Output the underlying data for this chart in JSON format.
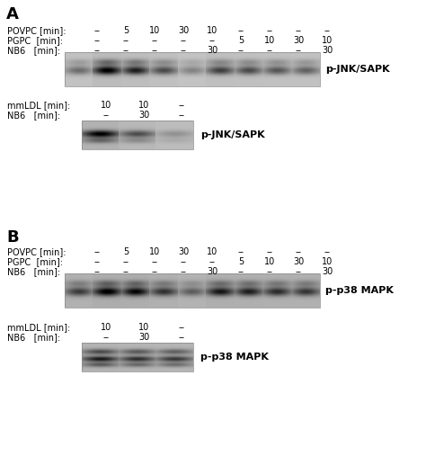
{
  "background_color": "#ffffff",
  "panel_A_label": "A",
  "panel_B_label": "B",
  "top_row_labels": [
    "POVPC [min]:",
    "PGPC  [min]:",
    "NB6   [min]:"
  ],
  "top_row1_vals": [
    "--",
    "5",
    "10",
    "30",
    "10",
    "--",
    "--",
    "--",
    "--"
  ],
  "top_row2_vals": [
    "--",
    "--",
    "--",
    "--",
    "--",
    "5",
    "10",
    "30",
    "10"
  ],
  "top_row3_vals": [
    "--",
    "--",
    "--",
    "--",
    "30",
    "--",
    "--",
    "--",
    "30"
  ],
  "bot_row_labels": [
    "mmLDL [min]:",
    "NB6   [min]:"
  ],
  "bot_row1_vals": [
    "10",
    "10",
    "--"
  ],
  "bot_row2_vals": [
    "--",
    "30",
    "--"
  ],
  "blot_label_A1": "p-JNK/SAPK",
  "blot_label_A2": "p-JNK/SAPK",
  "blot_label_B1": "p-p38 MAPK",
  "blot_label_B2": "p-p38 MAPK",
  "intensities_A1": [
    0.4,
    0.9,
    0.75,
    0.55,
    0.3,
    0.6,
    0.55,
    0.5,
    0.45
  ],
  "intensities_A2": [
    0.85,
    0.5,
    0.2
  ],
  "intensities_B1": [
    0.55,
    0.85,
    0.8,
    0.6,
    0.4,
    0.72,
    0.68,
    0.62,
    0.58
  ],
  "intensities_B2": [
    0.8,
    0.7,
    0.65
  ]
}
